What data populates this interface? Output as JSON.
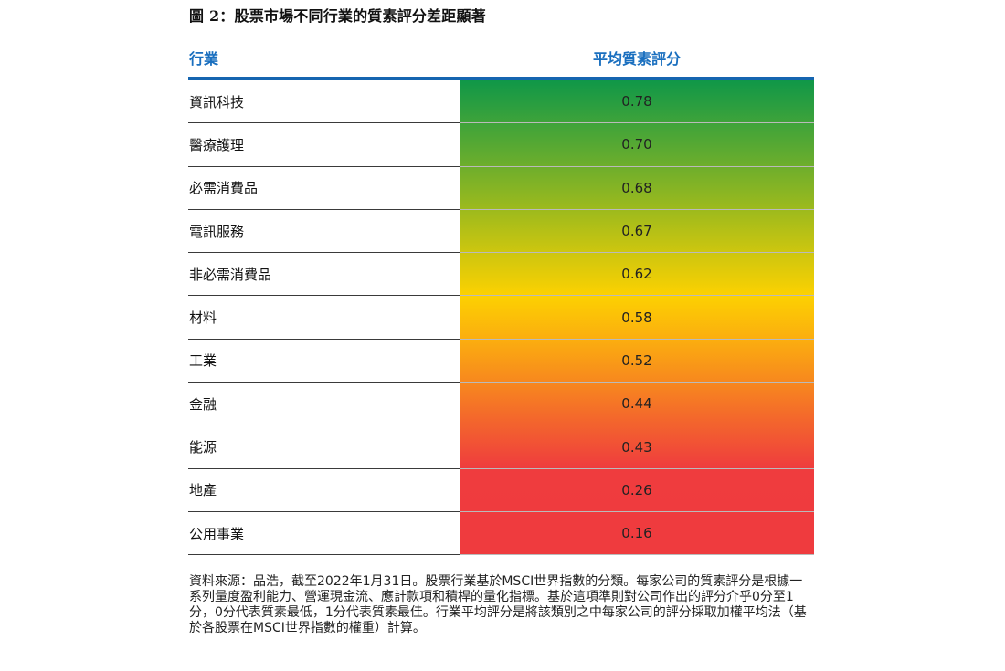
{
  "figure": {
    "title": "圖 2：股票市場不同行業的質素評分差距顯著",
    "note": "資料來源：品浩，截至2022年1月31日。股票行業基於MSCI世界指數的分類。每家公司的質素評分是根據一系列量度盈利能力、營運現金流、應計款項和積桿的量化指標。基於這項準則對公司作出的評分介乎0分至1分，0分代表質素最低，1分代表質素最佳。行業平均評分是將該類別之中每家公司的評分採取加權平均法（基於各股票在MSCI世界指數的權重）計算。"
  },
  "chart_data": {
    "type": "table",
    "columns": [
      "行業",
      "平均質素評分"
    ],
    "categories": [
      "資訊科技",
      "醫療護理",
      "必需消費品",
      "電訊服務",
      "非必需消費品",
      "材料",
      "工業",
      "金融",
      "能源",
      "地產",
      "公用事業"
    ],
    "values": [
      0.78,
      0.7,
      0.68,
      0.67,
      0.62,
      0.58,
      0.52,
      0.44,
      0.43,
      0.26,
      0.16
    ],
    "value_labels": [
      "0.78",
      "0.70",
      "0.68",
      "0.67",
      "0.62",
      "0.58",
      "0.52",
      "0.44",
      "0.43",
      "0.26",
      "0.16"
    ],
    "color_scale": {
      "high": "#0f9748",
      "mid": "#ffd200",
      "low": "#ef3b3e"
    }
  },
  "colors": {
    "header_text": "#1a6fbf",
    "header_rule": "#1565b0"
  }
}
